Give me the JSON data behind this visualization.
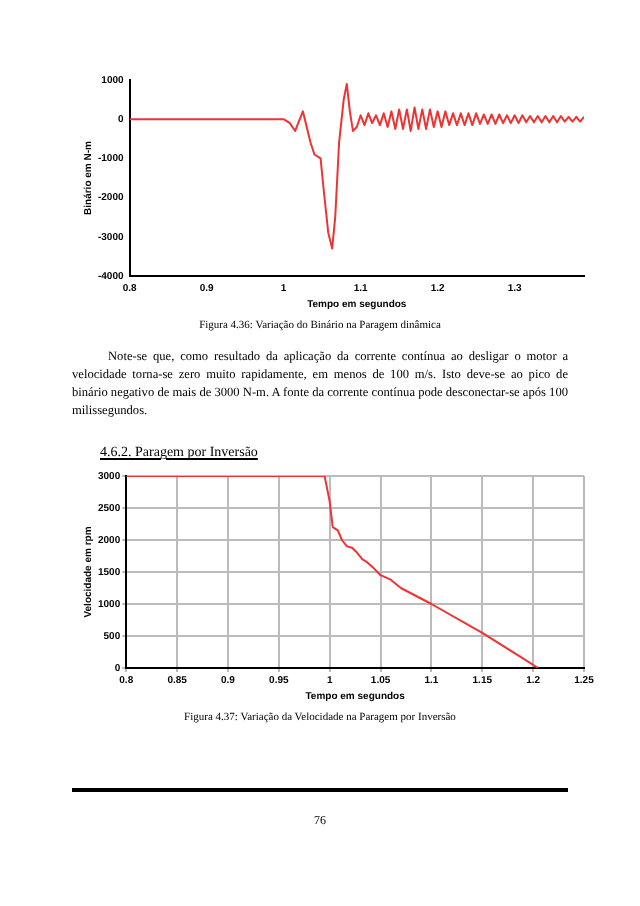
{
  "chart_data": [
    {
      "type": "line",
      "xlabel": "Tempo em segundos",
      "ylabel": "Binário em N-m",
      "xlim": [
        0.8,
        1.39
      ],
      "xticks": [
        0.8,
        0.9,
        1,
        1.1,
        1.2,
        1.3
      ],
      "ylim": [
        -4000,
        1000
      ],
      "yticks": [
        -4000,
        -3000,
        -2000,
        -1000,
        0,
        1000
      ],
      "grid": false,
      "legend": false,
      "marker": "none",
      "line_style": "solid",
      "series": [
        {
          "color": "#ee3333",
          "x": [
            0.8,
            1.0,
            1.008,
            1.015,
            1.02,
            1.025,
            1.03,
            1.035,
            1.04,
            1.048,
            1.052,
            1.058,
            1.063,
            1.067,
            1.072,
            1.078,
            1.082,
            1.086,
            1.09,
            1.095,
            1.1,
            1.105,
            1.11,
            1.115,
            1.12,
            1.125,
            1.13,
            1.135,
            1.14,
            1.145,
            1.15,
            1.155,
            1.16,
            1.165,
            1.17,
            1.175,
            1.18,
            1.185,
            1.19,
            1.195,
            1.2,
            1.205,
            1.21,
            1.215,
            1.22,
            1.225,
            1.23,
            1.235,
            1.24,
            1.245,
            1.25,
            1.255,
            1.26,
            1.265,
            1.27,
            1.275,
            1.28,
            1.285,
            1.29,
            1.295,
            1.3,
            1.305,
            1.31,
            1.315,
            1.32,
            1.325,
            1.33,
            1.335,
            1.34,
            1.345,
            1.35,
            1.355,
            1.36,
            1.365,
            1.37,
            1.375,
            1.38,
            1.385,
            1.39
          ],
          "values": [
            0,
            0,
            -100,
            -300,
            -50,
            200,
            -200,
            -600,
            -900,
            -1000,
            -1800,
            -2900,
            -3300,
            -2500,
            -600,
            500,
            900,
            200,
            -300,
            -200,
            100,
            -150,
            150,
            -100,
            100,
            -150,
            150,
            -200,
            200,
            -250,
            250,
            -250,
            250,
            -300,
            300,
            -250,
            250,
            -250,
            250,
            -200,
            200,
            -200,
            200,
            -150,
            150,
            -150,
            150,
            -150,
            150,
            -150,
            150,
            -120,
            120,
            -120,
            120,
            -120,
            120,
            -100,
            100,
            -100,
            100,
            -100,
            100,
            -80,
            80,
            -80,
            80,
            -80,
            80,
            -80,
            80,
            -80,
            80,
            -60,
            60,
            -60,
            60,
            -60,
            60
          ]
        }
      ],
      "annotations": [
        "Figura 4.36: Variação do Binário na Paragem dinâmica",
        "Note-se que, como resultado da aplicação da corrente contínua ao desligar o motor a velocidade torna-se zero muito rapidamente, em menos de 100 m/s. Isto deve-se ao pico de binário negativo de mais de 3000 N-m. A fonte da corrente contínua pode desconectar-se após 100 milissegundos."
      ]
    },
    {
      "type": "line",
      "title": "4.6.2.  Paragem por Inversão",
      "xlabel": "Tempo em segundos",
      "ylabel": "Velocidade em rpm",
      "xlim": [
        0.8,
        1.25
      ],
      "xticks": [
        0.8,
        0.85,
        0.9,
        0.95,
        1,
        1.05,
        1.1,
        1.15,
        1.2,
        1.25
      ],
      "ylim": [
        0,
        3000
      ],
      "yticks": [
        0,
        500,
        1000,
        1500,
        2000,
        2500,
        3000
      ],
      "grid": true,
      "legend": false,
      "marker": "none",
      "line_style": "solid",
      "series": [
        {
          "color": "#ee3333",
          "x": [
            0.8,
            0.995,
            1.0,
            1.003,
            1.008,
            1.012,
            1.017,
            1.022,
            1.027,
            1.032,
            1.037,
            1.042,
            1.05,
            1.06,
            1.07,
            1.1,
            1.15,
            1.205
          ],
          "values": [
            3000,
            3000,
            2600,
            2200,
            2150,
            2000,
            1900,
            1880,
            1800,
            1700,
            1650,
            1580,
            1450,
            1380,
            1250,
            1000,
            550,
            0
          ]
        }
      ],
      "annotations": [
        "Figura 4.37: Variação da Velocidade na Paragem por Inversão",
        "76"
      ]
    }
  ]
}
